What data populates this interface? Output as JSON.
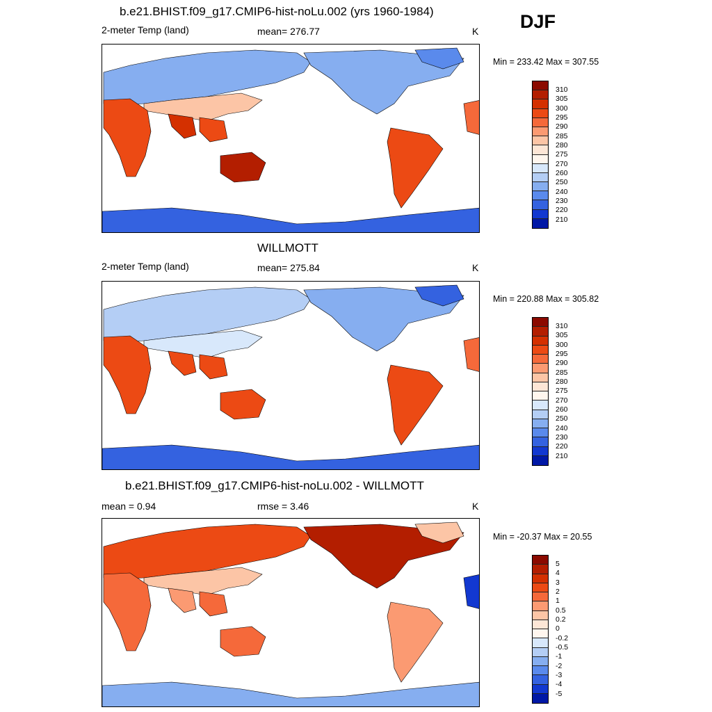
{
  "season": "DJF",
  "panels": [
    {
      "title": "b.e21.BHIST.f09_g17.CMIP6-hist-noLu.002 (yrs 1960-1984)",
      "left_label": "2-meter Temp (land)",
      "center_label": "mean= 276.77",
      "right_label": "K",
      "minmax": "Min = 233.42 Max = 307.55",
      "colorbar_labels": [
        "310",
        "305",
        "300",
        "295",
        "290",
        "285",
        "280",
        "275",
        "270",
        "260",
        "250",
        "240",
        "230",
        "220",
        "210"
      ],
      "colorbar_colors": [
        "#8b0a00",
        "#b31e00",
        "#d43000",
        "#ec4a14",
        "#f5693a",
        "#fb9a72",
        "#fcc5a6",
        "#fde6d6",
        "#fff6ee",
        "#d8e8fb",
        "#b4cef5",
        "#86aef0",
        "#5a8aec",
        "#3462e0",
        "#1238d0",
        "#0018a6"
      ],
      "mean": 276.77,
      "min": 233.42,
      "max": 307.55
    },
    {
      "title": "WILLMOTT",
      "left_label": "2-meter Temp (land)",
      "center_label": "mean= 275.84",
      "right_label": "K",
      "minmax": "Min = 220.88 Max = 305.82",
      "colorbar_labels": [
        "310",
        "305",
        "300",
        "295",
        "290",
        "285",
        "280",
        "275",
        "270",
        "260",
        "250",
        "240",
        "230",
        "220",
        "210"
      ],
      "colorbar_colors": [
        "#8b0a00",
        "#b31e00",
        "#d43000",
        "#ec4a14",
        "#f5693a",
        "#fb9a72",
        "#fcc5a6",
        "#fde6d6",
        "#fff6ee",
        "#d8e8fb",
        "#b4cef5",
        "#86aef0",
        "#5a8aec",
        "#3462e0",
        "#1238d0",
        "#0018a6"
      ],
      "mean": 275.84,
      "min": 220.88,
      "max": 305.82
    },
    {
      "title": "b.e21.BHIST.f09_g17.CMIP6-hist-noLu.002 - WILLMOTT",
      "left_label": "mean =   0.94",
      "center_label": "rmse =   3.46",
      "right_label": "K",
      "minmax": "Min = -20.37 Max =  20.55",
      "colorbar_labels": [
        "5",
        "4",
        "3",
        "2",
        "1",
        "0.5",
        "0.2",
        "0",
        "-0.2",
        "-0.5",
        "-1",
        "-2",
        "-3",
        "-4",
        "-5"
      ],
      "colorbar_colors": [
        "#8b0a00",
        "#b31e00",
        "#d43000",
        "#ec4a14",
        "#f5693a",
        "#fb9a72",
        "#fcc5a6",
        "#fde6d6",
        "#fff6ee",
        "#d8e8fb",
        "#b4cef5",
        "#86aef0",
        "#5a8aec",
        "#3462e0",
        "#1238d0",
        "#0018a6"
      ],
      "mean": 0.94,
      "rmse": 3.46,
      "min": -20.37,
      "max": 20.55
    }
  ]
}
